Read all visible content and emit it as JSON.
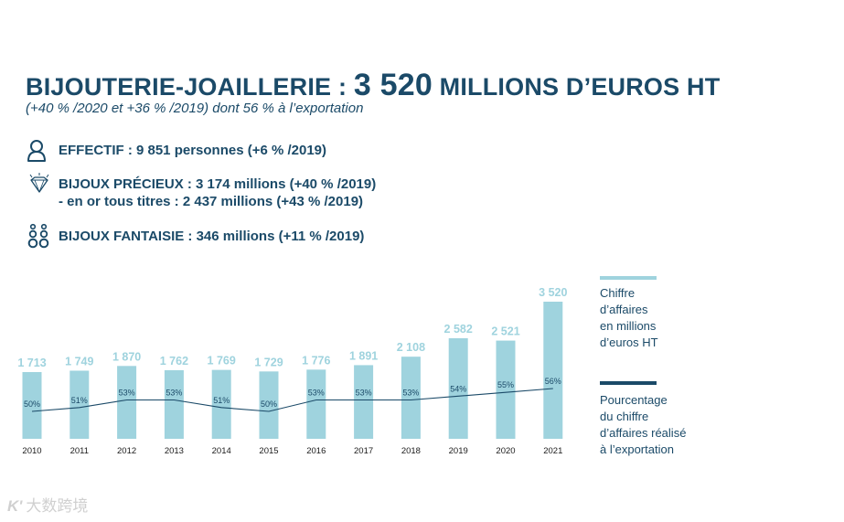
{
  "header": {
    "title_main": "BIJOUTERIE-JOAILLERIE :",
    "title_value": "3 520",
    "title_unit": "MILLIONS D’EUROS HT",
    "subtitle": "(+40 % /2020 et +36 % /2019) dont 56 % à l’exportation"
  },
  "stats": {
    "effectif": "EFFECTIF : 9 851 personnes (+6 % /2019)",
    "precieux": "BIJOUX PRÉCIEUX : 3 174 millions (+40 % /2019)",
    "precieux_sub": "- en or tous titres : 2 437 millions (+43 % /2019)",
    "fantaisie": "BIJOUX FANTAISIE : 346 millions (+11 % /2019)"
  },
  "icons": {
    "effectif": "person-icon",
    "precieux": "diamond-icon",
    "fantaisie": "earrings-icon"
  },
  "legend": {
    "bars": [
      "Chiffre",
      "d’affaires",
      "en millions",
      "d’euros HT"
    ],
    "line": [
      "Pourcentage",
      "du chiffre",
      "d’affaires réalisé",
      "à l’exportation"
    ]
  },
  "colors": {
    "bar": "#9fd3de",
    "bar_label": "#9fd3de",
    "line": "#1b4a68",
    "text": "#1b4a68"
  },
  "chart_data": {
    "type": "bar",
    "categories": [
      "2010",
      "2011",
      "2012",
      "2013",
      "2014",
      "2015",
      "2016",
      "2017",
      "2018",
      "2019",
      "2020",
      "2021"
    ],
    "series": [
      {
        "name": "Chiffre d’affaires en millions d’euros HT",
        "values": [
          1713,
          1749,
          1870,
          1762,
          1769,
          1729,
          1776,
          1891,
          2108,
          2582,
          2521,
          3520
        ],
        "labels": [
          "1 713",
          "1 749",
          "1 870",
          "1 762",
          "1 769",
          "1 729",
          "1 776",
          "1 891",
          "2 108",
          "2 582",
          "2 521",
          "3 520"
        ]
      },
      {
        "name": "Pourcentage du chiffre d’affaires réalisé à l’exportation",
        "type": "line",
        "values": [
          50,
          51,
          53,
          53,
          51,
          50,
          53,
          53,
          53,
          54,
          55,
          56
        ],
        "labels": [
          "50%",
          "51%",
          "53%",
          "53%",
          "51%",
          "50%",
          "53%",
          "53%",
          "53%",
          "54%",
          "55%",
          "56%"
        ]
      }
    ],
    "ylim": [
      0,
      3520
    ],
    "export_ylim": [
      50,
      56
    ],
    "grid": false,
    "legend_position": "right"
  },
  "watermark": {
    "logo": "K'",
    "text": "大数跨境"
  }
}
